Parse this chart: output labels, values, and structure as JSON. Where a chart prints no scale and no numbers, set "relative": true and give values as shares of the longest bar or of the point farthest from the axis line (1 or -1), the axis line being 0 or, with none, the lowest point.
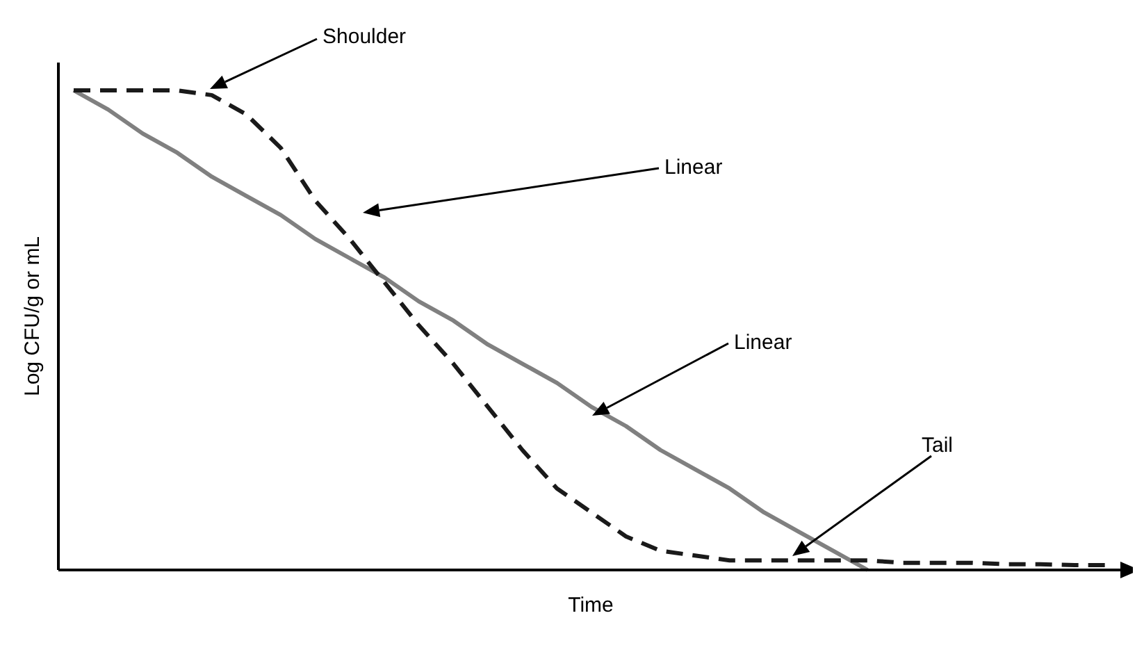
{
  "chart_data": {
    "type": "line",
    "xlabel": "Time",
    "ylabel": "Log CFU/g or mL",
    "relative": true,
    "marker": "none",
    "categories": [
      null,
      null,
      null,
      null,
      null,
      null,
      null,
      null,
      null,
      null,
      null,
      null,
      null,
      null,
      null,
      null,
      null,
      null,
      null,
      null,
      null,
      null,
      null,
      null,
      null,
      null,
      null,
      null,
      null,
      null,
      null
    ],
    "series": [
      {
        "color": "#808080",
        "line_style": "solid",
        "values": [
          1,
          0.96,
          0.91,
          0.87,
          0.82,
          0.78,
          0.74,
          0.69,
          0.65,
          0.61,
          0.56,
          0.52,
          0.47,
          0.43,
          0.39,
          0.34,
          0.3,
          0.25,
          0.21,
          0.17,
          0.12,
          0.08,
          0.04,
          0,
          null,
          null,
          null,
          null,
          null,
          null,
          null
        ]
      },
      {
        "color": "#1a1a1a",
        "line_style": "dashed",
        "values": [
          1,
          1,
          1,
          1,
          0.99,
          0.95,
          0.88,
          0.77,
          0.69,
          0.6,
          0.51,
          0.43,
          0.34,
          0.25,
          0.17,
          0.12,
          0.07,
          0.04,
          0.03,
          0.02,
          0.02,
          0.02,
          0.02,
          0.02,
          0.015,
          0.015,
          0.015,
          0.012,
          0.012,
          0.01,
          0.01
        ]
      }
    ],
    "annotations": [
      "Shoulder",
      "Linear",
      "Linear",
      "Tail"
    ]
  }
}
